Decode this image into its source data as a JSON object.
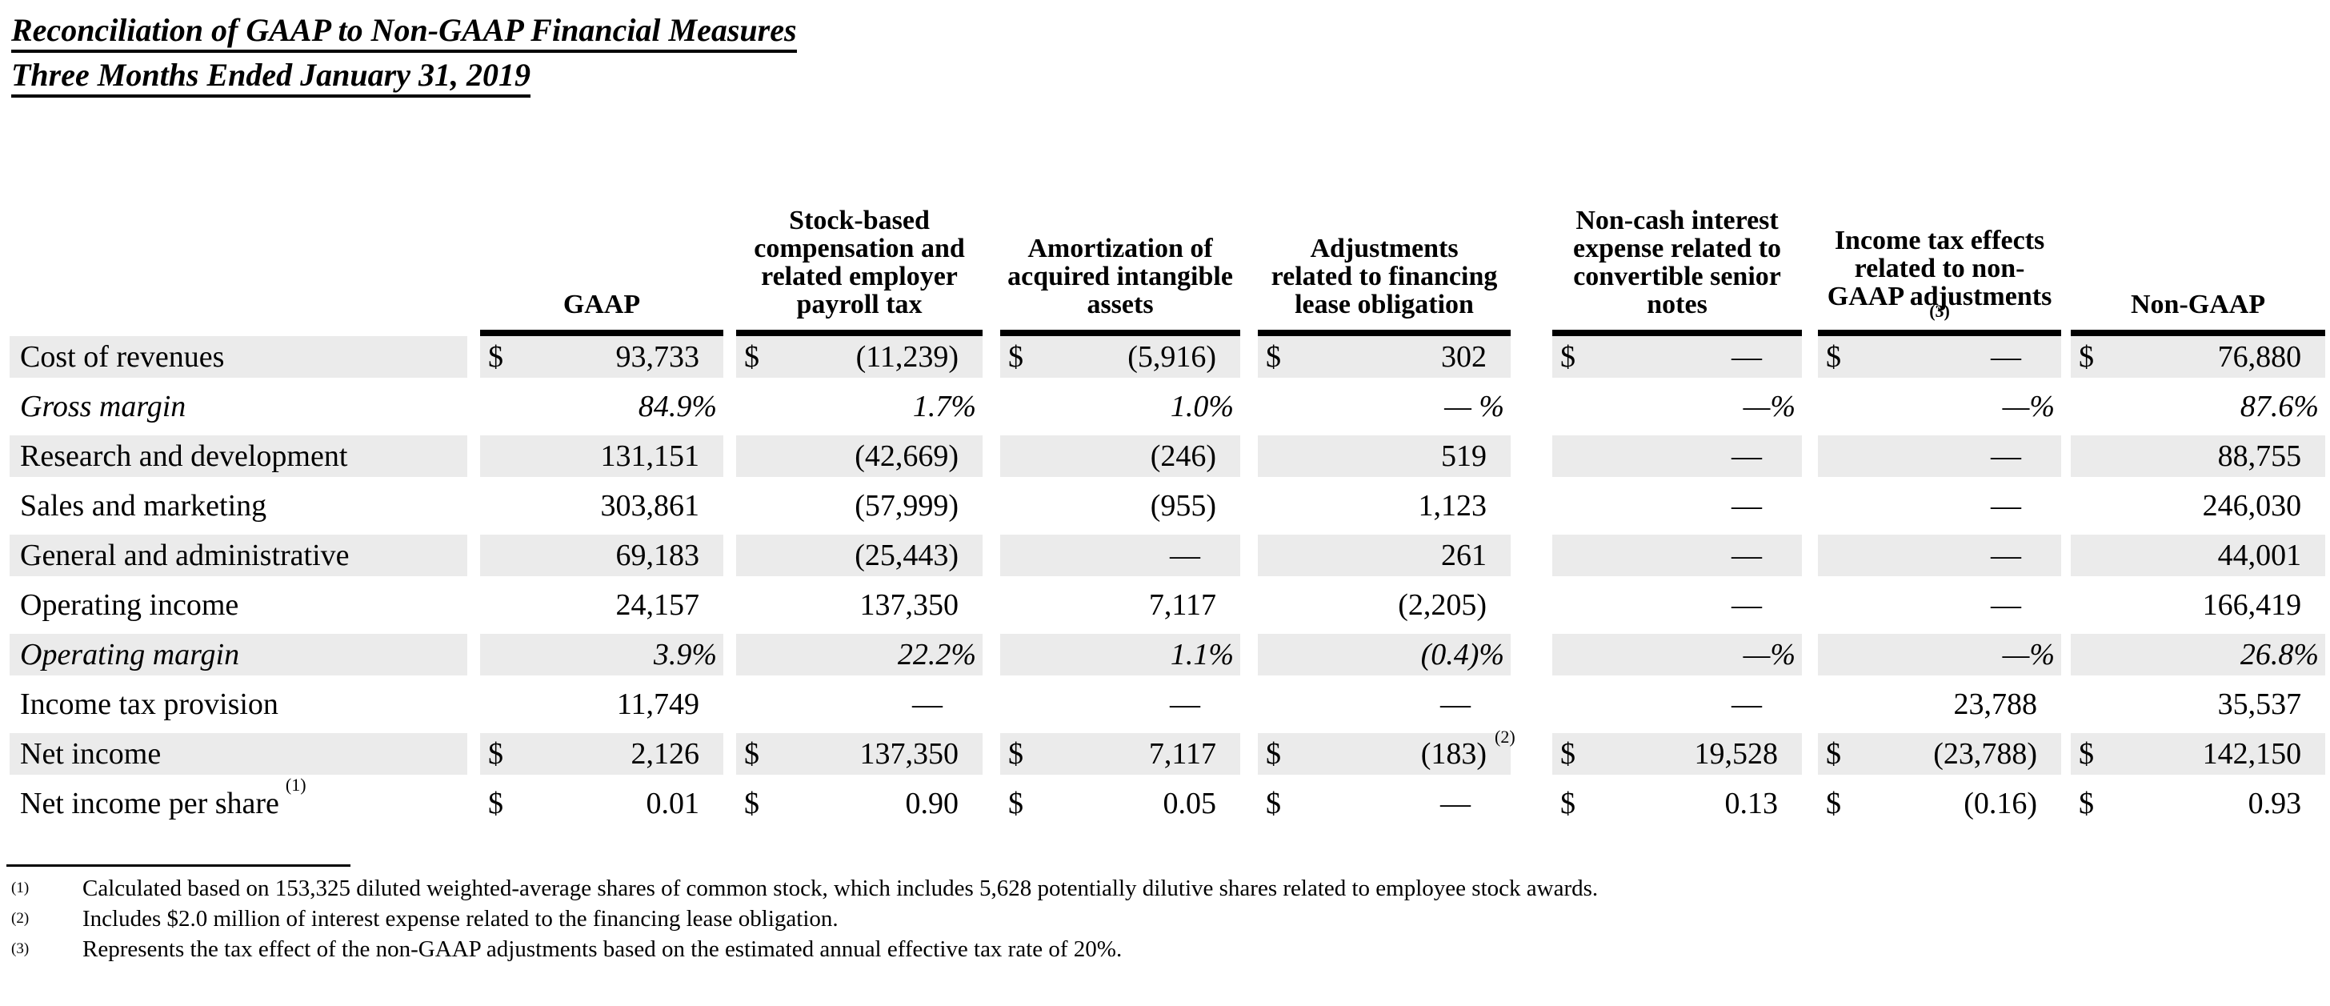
{
  "title": {
    "line1": "Reconciliation of GAAP to Non-GAAP Financial Measures",
    "line2": "Three Months Ended January 31, 2019"
  },
  "table": {
    "columns": [
      {
        "label": "GAAP"
      },
      {
        "label": "Stock-based\ncompensation and\nrelated employer\npayroll tax"
      },
      {
        "label": "Amortization of\nacquired intangible\nassets"
      },
      {
        "label": "Adjustments\nrelated to financing\nlease obligation"
      },
      {
        "label": "Non-cash interest\nexpense related to\nconvertible senior\nnotes"
      },
      {
        "label": "Income tax effects\nrelated to non-\nGAAP adjustments",
        "footnote_marker": "(3)"
      },
      {
        "label": "Non-GAAP"
      }
    ],
    "rows": [
      {
        "label": "Cost of revenues",
        "striped": true,
        "italic": false,
        "cells": [
          {
            "sym": "$",
            "val": "93,733"
          },
          {
            "sym": "$",
            "val": "(11,239)"
          },
          {
            "sym": "$",
            "val": "(5,916)"
          },
          {
            "sym": "$",
            "val": "302"
          },
          {
            "sym": "$",
            "val": "—",
            "cls": "dash"
          },
          {
            "sym": "$",
            "val": "—",
            "cls": "dash"
          },
          {
            "sym": "$",
            "val": "76,880"
          }
        ]
      },
      {
        "label": "Gross margin",
        "striped": false,
        "italic": true,
        "cells": [
          {
            "sym": "",
            "val": "84.9%",
            "cls": "pct"
          },
          {
            "sym": "",
            "val": "1.7%",
            "cls": "pct"
          },
          {
            "sym": "",
            "val": "1.0%",
            "cls": "pct"
          },
          {
            "sym": "",
            "val": "— %",
            "cls": "pct"
          },
          {
            "sym": "",
            "val": "—%",
            "cls": "pct"
          },
          {
            "sym": "",
            "val": "—%",
            "cls": "pct"
          },
          {
            "sym": "",
            "val": "87.6%",
            "cls": "pct"
          }
        ]
      },
      {
        "label": "Research and development",
        "striped": true,
        "italic": false,
        "cells": [
          {
            "sym": "",
            "val": "131,151"
          },
          {
            "sym": "",
            "val": "(42,669)"
          },
          {
            "sym": "",
            "val": "(246)"
          },
          {
            "sym": "",
            "val": "519"
          },
          {
            "sym": "",
            "val": "—",
            "cls": "dash"
          },
          {
            "sym": "",
            "val": "—",
            "cls": "dash"
          },
          {
            "sym": "",
            "val": "88,755"
          }
        ]
      },
      {
        "label": "Sales and marketing",
        "striped": false,
        "italic": false,
        "cells": [
          {
            "sym": "",
            "val": "303,861"
          },
          {
            "sym": "",
            "val": "(57,999)"
          },
          {
            "sym": "",
            "val": "(955)"
          },
          {
            "sym": "",
            "val": "1,123"
          },
          {
            "sym": "",
            "val": "—",
            "cls": "dash"
          },
          {
            "sym": "",
            "val": "—",
            "cls": "dash"
          },
          {
            "sym": "",
            "val": "246,030"
          }
        ]
      },
      {
        "label": "General and administrative",
        "striped": true,
        "italic": false,
        "cells": [
          {
            "sym": "",
            "val": "69,183"
          },
          {
            "sym": "",
            "val": "(25,443)"
          },
          {
            "sym": "",
            "val": "—",
            "cls": "dash"
          },
          {
            "sym": "",
            "val": "261"
          },
          {
            "sym": "",
            "val": "—",
            "cls": "dash"
          },
          {
            "sym": "",
            "val": "—",
            "cls": "dash"
          },
          {
            "sym": "",
            "val": "44,001"
          }
        ]
      },
      {
        "label": "Operating income",
        "striped": false,
        "italic": false,
        "cells": [
          {
            "sym": "",
            "val": "24,157"
          },
          {
            "sym": "",
            "val": "137,350"
          },
          {
            "sym": "",
            "val": "7,117"
          },
          {
            "sym": "",
            "val": "(2,205)"
          },
          {
            "sym": "",
            "val": "—",
            "cls": "dash"
          },
          {
            "sym": "",
            "val": "—",
            "cls": "dash"
          },
          {
            "sym": "",
            "val": "166,419"
          }
        ]
      },
      {
        "label": "Operating margin",
        "striped": true,
        "italic": true,
        "cells": [
          {
            "sym": "",
            "val": "3.9%",
            "cls": "pct"
          },
          {
            "sym": "",
            "val": "22.2%",
            "cls": "pct"
          },
          {
            "sym": "",
            "val": "1.1%",
            "cls": "pct"
          },
          {
            "sym": "",
            "val": "(0.4)%",
            "cls": "pct"
          },
          {
            "sym": "",
            "val": "—%",
            "cls": "pct"
          },
          {
            "sym": "",
            "val": "—%",
            "cls": "pct"
          },
          {
            "sym": "",
            "val": "26.8%",
            "cls": "pct"
          }
        ]
      },
      {
        "label": "Income tax provision",
        "striped": false,
        "italic": false,
        "cells": [
          {
            "sym": "",
            "val": "11,749"
          },
          {
            "sym": "",
            "val": "—",
            "cls": "dash"
          },
          {
            "sym": "",
            "val": "—",
            "cls": "dash"
          },
          {
            "sym": "",
            "val": "—",
            "cls": "dash"
          },
          {
            "sym": "",
            "val": "—",
            "cls": "dash"
          },
          {
            "sym": "",
            "val": "23,788"
          },
          {
            "sym": "",
            "val": "35,537"
          }
        ]
      },
      {
        "label": "Net income",
        "striped": true,
        "italic": false,
        "cells": [
          {
            "sym": "$",
            "val": "2,126"
          },
          {
            "sym": "$",
            "val": "137,350"
          },
          {
            "sym": "$",
            "val": "7,117"
          },
          {
            "sym": "$",
            "val": "(183)",
            "sup": "(2)"
          },
          {
            "sym": "$",
            "val": "19,528"
          },
          {
            "sym": "$",
            "val": "(23,788)"
          },
          {
            "sym": "$",
            "val": "142,150"
          }
        ]
      },
      {
        "label": "Net income per share",
        "label_sup": "(1)",
        "striped": false,
        "italic": false,
        "cells": [
          {
            "sym": "$",
            "val": "0.01"
          },
          {
            "sym": "$",
            "val": "0.90"
          },
          {
            "sym": "$",
            "val": "0.05"
          },
          {
            "sym": "$",
            "val": "—",
            "cls": "dash"
          },
          {
            "sym": "$",
            "val": "0.13"
          },
          {
            "sym": "$",
            "val": "(0.16)"
          },
          {
            "sym": "$",
            "val": "0.93"
          }
        ]
      }
    ]
  },
  "footnotes": [
    {
      "marker": "(1)",
      "text": "Calculated based on 153,325 diluted weighted-average shares of common stock, which includes 5,628 potentially dilutive shares related to employee stock awards."
    },
    {
      "marker": "(2)",
      "text": "Includes $2.0 million of interest expense related to the financing lease obligation."
    },
    {
      "marker": "(3)",
      "text": "Represents the tax effect of the non-GAAP adjustments based on the estimated annual effective tax rate of 20%."
    }
  ],
  "colors": {
    "stripe": "#ebebeb",
    "text": "#000000",
    "rule": "#000000",
    "background": "#ffffff"
  }
}
